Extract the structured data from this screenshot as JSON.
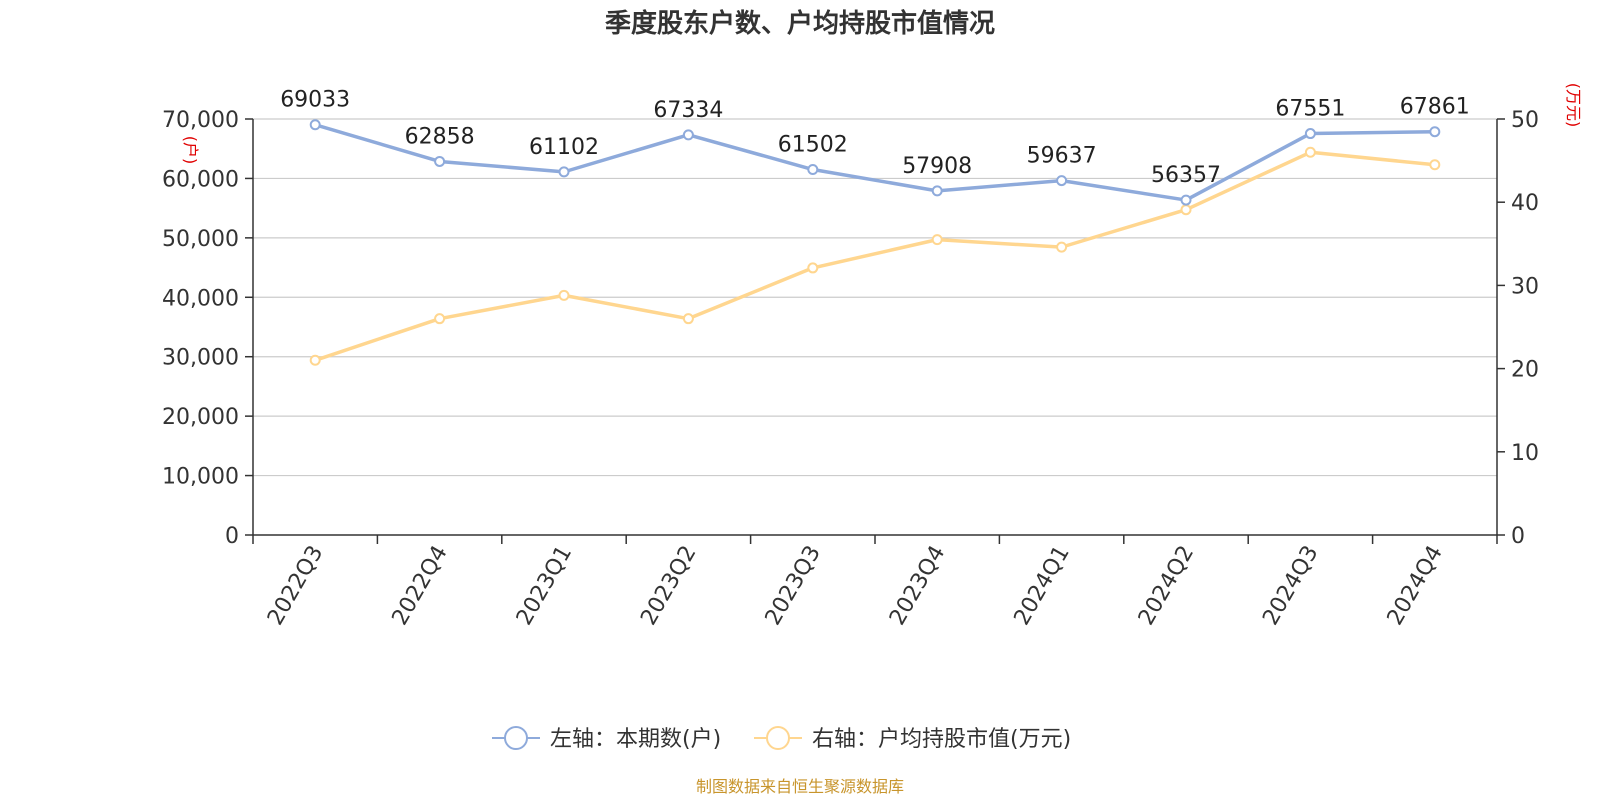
{
  "chart_data": {
    "type": "line",
    "title": "季度股东户数、户均持股市值情况",
    "categories": [
      "2022Q3",
      "2022Q4",
      "2023Q1",
      "2023Q2",
      "2023Q3",
      "2023Q4",
      "2024Q1",
      "2024Q2",
      "2024Q3",
      "2024Q4"
    ],
    "series": [
      {
        "name": "左轴：本期数(户)",
        "axis": "left",
        "color": "#8eaadb",
        "values": [
          69033,
          62858,
          61102,
          67334,
          61502,
          57908,
          59637,
          56357,
          67551,
          67861
        ],
        "show_labels": true
      },
      {
        "name": "右轴：户均持股市值(万元)",
        "axis": "right",
        "color": "#ffd68f",
        "values": [
          21.0,
          26.0,
          28.8,
          26.0,
          32.1,
          35.5,
          34.6,
          39.1,
          46.0,
          44.5
        ],
        "show_labels": false
      }
    ],
    "left_axis": {
      "unit": "(户)",
      "ylim": [
        0,
        70000
      ],
      "ticks": [
        "0",
        "10,000",
        "20,000",
        "30,000",
        "40,000",
        "50,000",
        "60,000",
        "70,000"
      ]
    },
    "right_axis": {
      "unit": "(万元)",
      "ylim": [
        0,
        50
      ],
      "ticks": [
        "0",
        "10",
        "20",
        "30",
        "40",
        "50"
      ]
    },
    "grid": true,
    "legend_position": "bottom-center"
  },
  "source_text": "制图数据来自恒生聚源数据库"
}
